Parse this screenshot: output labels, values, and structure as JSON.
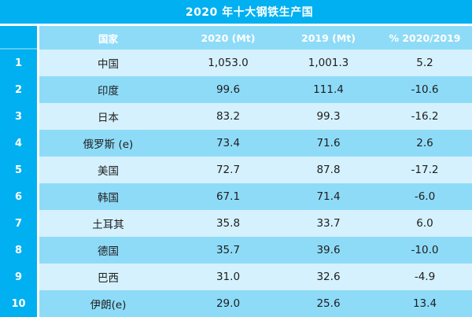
{
  "title": "2020 年十大钢铁生产国",
  "table": {
    "rank_header": "",
    "columns": [
      "国家",
      "2020 (Mt)",
      "2019 (Mt)",
      "% 2020/2019"
    ],
    "rows": [
      {
        "rank": "1",
        "country": "中国",
        "v2020": "1,053.0",
        "v2019": "1,001.3",
        "pct": "5.2"
      },
      {
        "rank": "2",
        "country": "印度",
        "v2020": "99.6",
        "v2019": "111.4",
        "pct": "-10.6"
      },
      {
        "rank": "3",
        "country": "日本",
        "v2020": "83.2",
        "v2019": "99.3",
        "pct": "-16.2"
      },
      {
        "rank": "4",
        "country": "俄罗斯 (e)",
        "v2020": "73.4",
        "v2019": "71.6",
        "pct": "2.6"
      },
      {
        "rank": "5",
        "country": "美国",
        "v2020": "72.7",
        "v2019": "87.8",
        "pct": "-17.2"
      },
      {
        "rank": "6",
        "country": "韩国",
        "v2020": "67.1",
        "v2019": "71.4",
        "pct": "-6.0"
      },
      {
        "rank": "7",
        "country": "土耳其",
        "v2020": "35.8",
        "v2019": "33.7",
        "pct": "6.0"
      },
      {
        "rank": "8",
        "country": "德国",
        "v2020": "35.7",
        "v2019": "39.6",
        "pct": "-10.0"
      },
      {
        "rank": "9",
        "country": "巴西",
        "v2020": "31.0",
        "v2019": "32.6",
        "pct": "-4.9"
      },
      {
        "rank": "10",
        "country": "伊朗(e)",
        "v2020": "29.0",
        "v2019": "25.6",
        "pct": "13.4"
      }
    ]
  },
  "chart_data": {
    "type": "table",
    "title": "2020 年十大钢铁生产国",
    "categories": [
      "中国",
      "印度",
      "日本",
      "俄罗斯 (e)",
      "美国",
      "韩国",
      "土耳其",
      "德国",
      "巴西",
      "伊朗(e)"
    ],
    "series": [
      {
        "name": "2020 (Mt)",
        "values": [
          1053.0,
          99.6,
          83.2,
          73.4,
          72.7,
          67.1,
          35.8,
          35.7,
          31.0,
          29.0
        ]
      },
      {
        "name": "2019 (Mt)",
        "values": [
          1001.3,
          111.4,
          99.3,
          71.6,
          87.8,
          71.4,
          33.7,
          39.6,
          32.6,
          25.6
        ]
      },
      {
        "name": "% 2020/2019",
        "values": [
          5.2,
          -10.6,
          -16.2,
          2.6,
          -17.2,
          -6.0,
          6.0,
          -10.0,
          -4.9,
          13.4
        ]
      }
    ],
    "ranks": [
      1,
      2,
      3,
      4,
      5,
      6,
      7,
      8,
      9,
      10
    ]
  },
  "colors": {
    "accent_cyan": "#00b0f0",
    "header_and_even_row_bg": "#8edbf8",
    "odd_row_bg": "#d5f1fd",
    "header_text": "#ffffff",
    "body_text": "#1e1e1e",
    "gap": "#ffffff"
  }
}
